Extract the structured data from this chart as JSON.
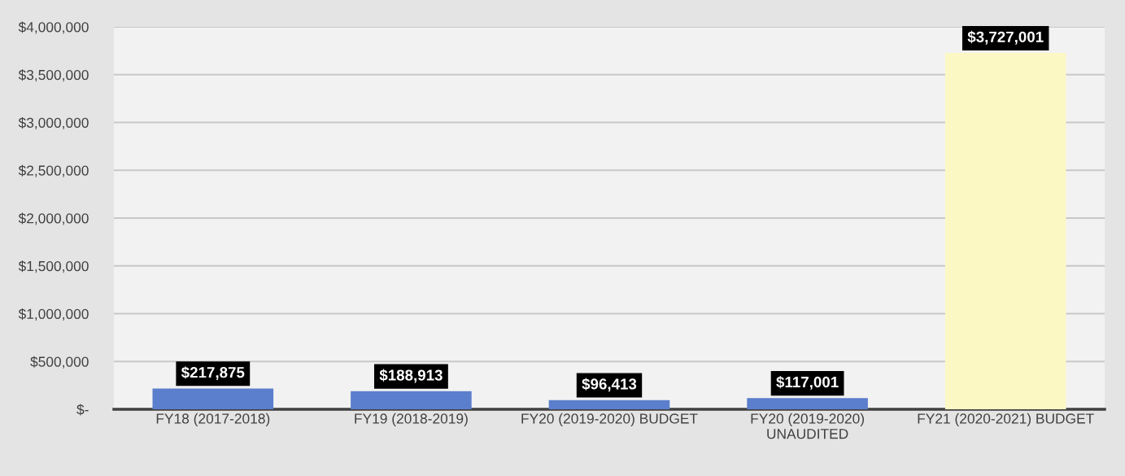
{
  "chart_data": {
    "type": "bar",
    "categories": [
      "FY18 (2017-2018)",
      "FY19 (2018-2019)",
      "FY20 (2019-2020) BUDGET",
      "FY20 (2019-2020)\nUNAUDITED",
      "FY21 (2020-2021) BUDGET"
    ],
    "values": [
      217875,
      188913,
      96413,
      117001,
      3727001
    ],
    "colors": [
      "#5b7fcc",
      "#5b7fcc",
      "#5b7fcc",
      "#5b7fcc",
      "#fbf8c4"
    ],
    "value_labels": [
      "$217,875",
      "$188,913",
      "$96,413",
      "$117,001",
      "$3,727,001"
    ],
    "ylim": [
      0,
      4000000
    ],
    "yticks": [
      {
        "value": 0,
        "label": "$-"
      },
      {
        "value": 500000,
        "label": "$500,000"
      },
      {
        "value": 1000000,
        "label": "$1,000,000"
      },
      {
        "value": 1500000,
        "label": "$1,500,000"
      },
      {
        "value": 2000000,
        "label": "$2,000,000"
      },
      {
        "value": 2500000,
        "label": "$2,500,000"
      },
      {
        "value": 3000000,
        "label": "$3,000,000"
      },
      {
        "value": 3500000,
        "label": "$3,500,000"
      },
      {
        "value": 4000000,
        "label": "$4,000,000"
      }
    ],
    "grid": "y"
  }
}
